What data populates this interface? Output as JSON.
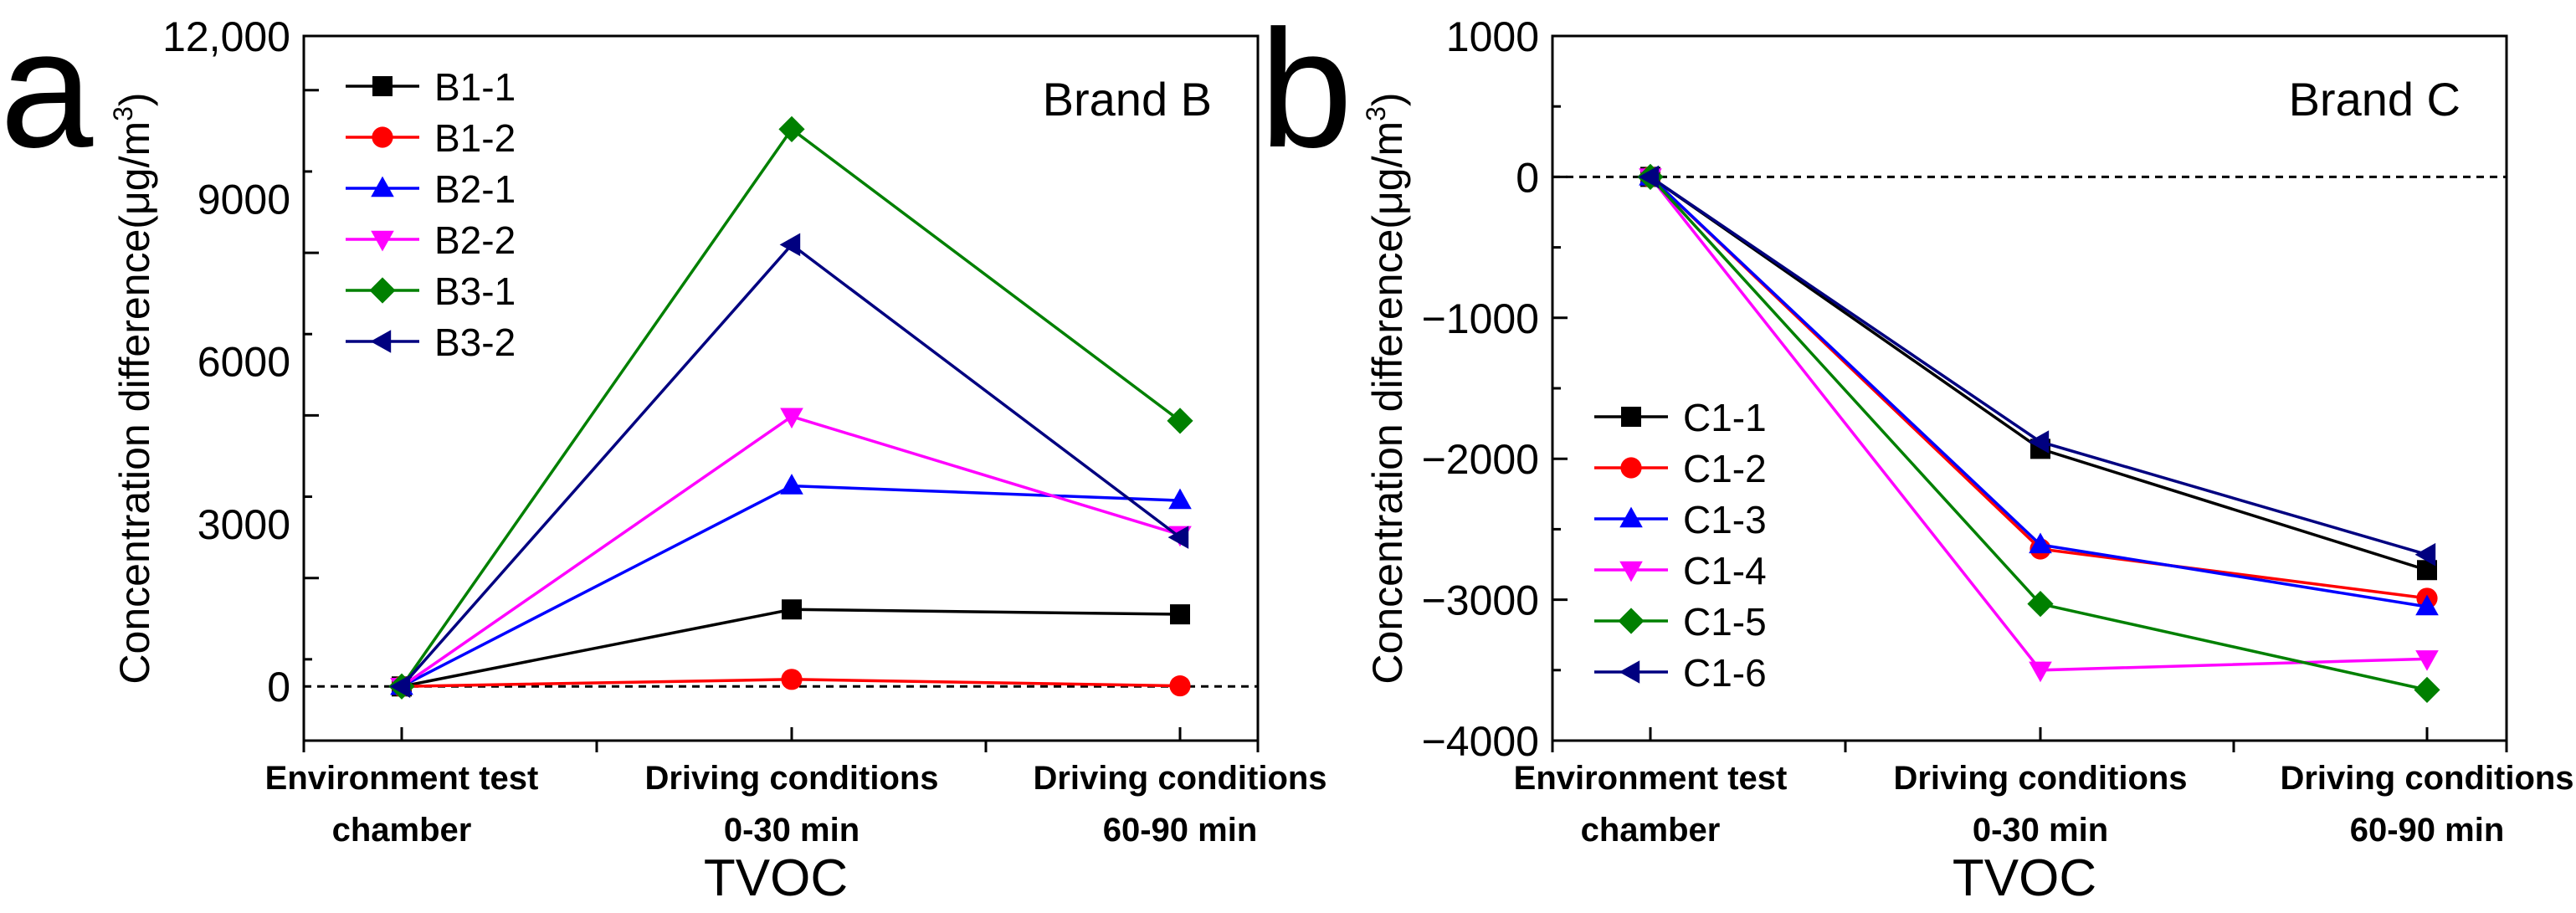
{
  "chart_data": [
    {
      "type": "line",
      "panel_label": "a",
      "title": "Brand B",
      "ylabel_main": "Concentration difference",
      "ylabel_unit": "(μg/m",
      "ylabel_sup": "3",
      "ylabel_close": ")",
      "xlabel": "TVOC",
      "ylim": [
        -1000,
        12000
      ],
      "yticks": [
        0,
        3000,
        6000,
        9000
      ],
      "ytick_labels": [
        "0",
        "3000",
        "6000",
        "9000"
      ],
      "ymax_label": "12,000",
      "categories": [
        [
          "Environment test",
          "chamber"
        ],
        [
          "Driving conditions",
          "0-30 min"
        ],
        [
          "Driving conditions",
          "60-90 min"
        ]
      ],
      "series": [
        {
          "name": "B1-1",
          "color": "#000000",
          "marker": "square",
          "values": [
            0,
            1420,
            1330
          ]
        },
        {
          "name": "B1-2",
          "color": "#ff0000",
          "marker": "circle",
          "values": [
            0,
            130,
            10
          ]
        },
        {
          "name": "B2-1",
          "color": "#0000ff",
          "marker": "triangle-up",
          "values": [
            0,
            3700,
            3430
          ]
        },
        {
          "name": "B2-2",
          "color": "#ff00ff",
          "marker": "triangle-down",
          "values": [
            0,
            4980,
            2800
          ]
        },
        {
          "name": "B3-1",
          "color": "#008000",
          "marker": "diamond",
          "values": [
            0,
            10280,
            4900
          ]
        },
        {
          "name": "B3-2",
          "color": "#000080",
          "marker": "triangle-left",
          "values": [
            0,
            8150,
            2750
          ]
        }
      ]
    },
    {
      "type": "line",
      "panel_label": "b",
      "title": "Brand C",
      "ylabel_main": "Concentration difference",
      "ylabel_unit": "(μg/m",
      "ylabel_sup": "3",
      "ylabel_close": ")",
      "xlabel": "TVOC",
      "ylim": [
        -4000,
        1000
      ],
      "yticks": [
        1000,
        0,
        -1000,
        -2000,
        -3000,
        -4000
      ],
      "ytick_labels": [
        "1000",
        "0",
        "−1000",
        "−2000",
        "−3000",
        "−4000"
      ],
      "categories": [
        [
          "Environment test",
          "chamber"
        ],
        [
          "Driving conditions",
          "0-30 min"
        ],
        [
          "Driving conditions",
          "60-90 min"
        ]
      ],
      "series": [
        {
          "name": "C1-1",
          "color": "#000000",
          "marker": "square",
          "values": [
            0,
            -1930,
            -2790
          ]
        },
        {
          "name": "C1-2",
          "color": "#ff0000",
          "marker": "circle",
          "values": [
            0,
            -2640,
            -2990
          ]
        },
        {
          "name": "C1-3",
          "color": "#0000ff",
          "marker": "triangle-up",
          "values": [
            0,
            -2610,
            -3050
          ]
        },
        {
          "name": "C1-4",
          "color": "#ff00ff",
          "marker": "triangle-down",
          "values": [
            0,
            -3500,
            -3420
          ]
        },
        {
          "name": "C1-5",
          "color": "#008000",
          "marker": "diamond",
          "values": [
            0,
            -3030,
            -3640
          ]
        },
        {
          "name": "C1-6",
          "color": "#000080",
          "marker": "triangle-left",
          "values": [
            0,
            -1880,
            -2680
          ]
        }
      ]
    }
  ]
}
